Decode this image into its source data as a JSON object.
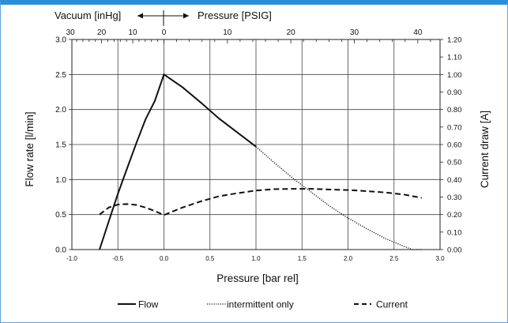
{
  "chart_data": {
    "type": "line",
    "xlabel": "Pressure [bar rel]",
    "ylabel": "Flow rate [l/min]",
    "y2label": "Current draw [A]",
    "xlim": [
      -1.0,
      3.0
    ],
    "ylim": [
      0.0,
      3.0
    ],
    "y2lim": [
      0.0,
      1.2
    ],
    "xticks": [
      "-1.0",
      "-0.5",
      "0.0",
      "0.5",
      "1.0",
      "1.5",
      "2.0",
      "2.5",
      "3.0"
    ],
    "yticks": [
      "0.0",
      "0.5",
      "1.0",
      "1.5",
      "2.0",
      "2.5",
      "3.0"
    ],
    "y2ticks": [
      "0.00",
      "0.10",
      "0.20",
      "0.30",
      "0.40",
      "0.50",
      "0.60",
      "0.70",
      "0.80",
      "0.90",
      "1.00",
      "1.10",
      "1.20"
    ],
    "top_axis": {
      "vacuum_label": "Vacuum [inHg]",
      "pressure_label": "Pressure [PSIG]",
      "vacuum_ticks": [
        {
          "label": "30",
          "bar": -1.0159
        },
        {
          "label": "20",
          "bar": -0.6773
        },
        {
          "label": "10",
          "bar": -0.3386
        },
        {
          "label": "0",
          "bar": 0.0
        }
      ],
      "psig_ticks": [
        {
          "label": "10",
          "bar": 0.6895
        },
        {
          "label": "20",
          "bar": 1.379
        },
        {
          "label": "30",
          "bar": 2.0684
        },
        {
          "label": "40",
          "bar": 2.7579
        }
      ]
    },
    "grid": true,
    "legend_position": "bottom",
    "series": [
      {
        "name": "Flow",
        "axis": "left",
        "style": "solid",
        "x": [
          -0.7,
          -0.6,
          -0.5,
          -0.4,
          -0.3,
          -0.2,
          -0.1,
          0.0,
          0.2,
          0.4,
          0.6,
          0.8,
          1.0
        ],
        "y": [
          0.0,
          0.4,
          0.8,
          1.16,
          1.52,
          1.86,
          2.12,
          2.5,
          2.32,
          2.1,
          1.87,
          1.67,
          1.47
        ]
      },
      {
        "name": "intermittent only",
        "axis": "left",
        "style": "dotted",
        "x": [
          1.0,
          1.2,
          1.4,
          1.6,
          1.8,
          2.0,
          2.2,
          2.4,
          2.6,
          2.7,
          2.8
        ],
        "y": [
          1.47,
          1.24,
          1.02,
          0.82,
          0.62,
          0.45,
          0.3,
          0.16,
          0.05,
          -0.01,
          -0.05
        ]
      },
      {
        "name": "Current",
        "axis": "right",
        "style": "dashed",
        "x": [
          -0.7,
          -0.6,
          -0.5,
          -0.4,
          -0.3,
          -0.2,
          -0.1,
          0.0,
          0.2,
          0.4,
          0.6,
          0.8,
          1.0,
          1.2,
          1.4,
          1.6,
          1.8,
          2.0,
          2.2,
          2.4,
          2.6,
          2.8
        ],
        "y": [
          0.2,
          0.24,
          0.257,
          0.26,
          0.255,
          0.24,
          0.22,
          0.197,
          0.24,
          0.275,
          0.305,
          0.322,
          0.337,
          0.345,
          0.347,
          0.347,
          0.343,
          0.34,
          0.334,
          0.326,
          0.315,
          0.295
        ]
      }
    ]
  }
}
